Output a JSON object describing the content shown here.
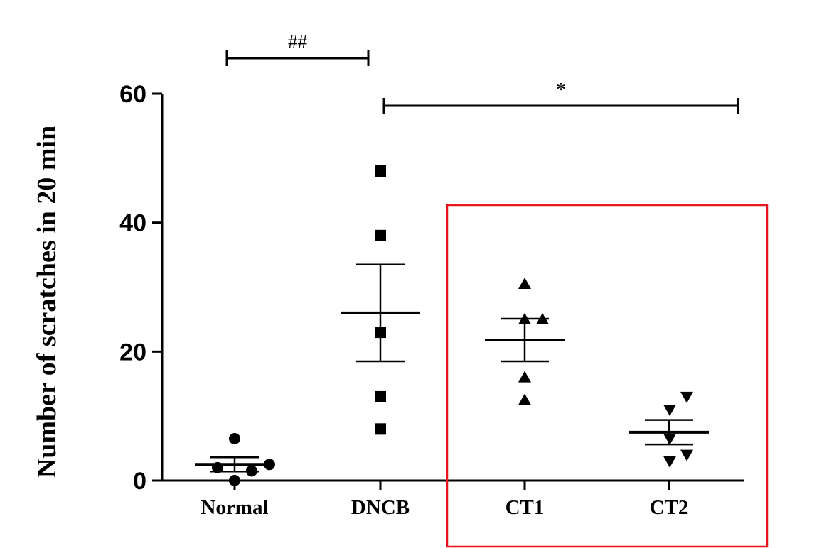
{
  "chart_data": {
    "type": "scatter",
    "title": "",
    "xlabel": "",
    "ylabel": "Number of scratches in 20 min",
    "ylim": [
      0,
      60
    ],
    "yticks": [
      0,
      20,
      40,
      60
    ],
    "grid": false,
    "categories": [
      "Normal",
      "DNCB",
      "CT1",
      "CT2"
    ],
    "groups": [
      {
        "category": "Normal",
        "marker": "circle",
        "points": [
          6.5,
          2.5,
          2,
          1.5,
          0
        ],
        "mean": 2.5,
        "sem_upper": 3.6,
        "sem_lower": 1.4
      },
      {
        "category": "DNCB",
        "marker": "square",
        "points": [
          48,
          38,
          23,
          13,
          8
        ],
        "mean": 26,
        "sem_upper": 33.5,
        "sem_lower": 18.5
      },
      {
        "category": "CT1",
        "marker": "triangle-up",
        "points": [
          30.5,
          25,
          25,
          16,
          12.5
        ],
        "mean": 21.8,
        "sem_upper": 25.1,
        "sem_lower": 18.5
      },
      {
        "category": "CT2",
        "marker": "triangle-down",
        "points": [
          13,
          11,
          6.5,
          4,
          3
        ],
        "mean": 7.5,
        "sem_upper": 9.4,
        "sem_lower": 5.6
      }
    ],
    "significance": [
      {
        "from": "Normal",
        "to": "DNCB",
        "label": "##"
      },
      {
        "from": "DNCB",
        "to": "CT2",
        "label": "*"
      }
    ],
    "highlight_box": {
      "categories": [
        "CT1",
        "CT2"
      ],
      "color": "#e8141b"
    }
  }
}
